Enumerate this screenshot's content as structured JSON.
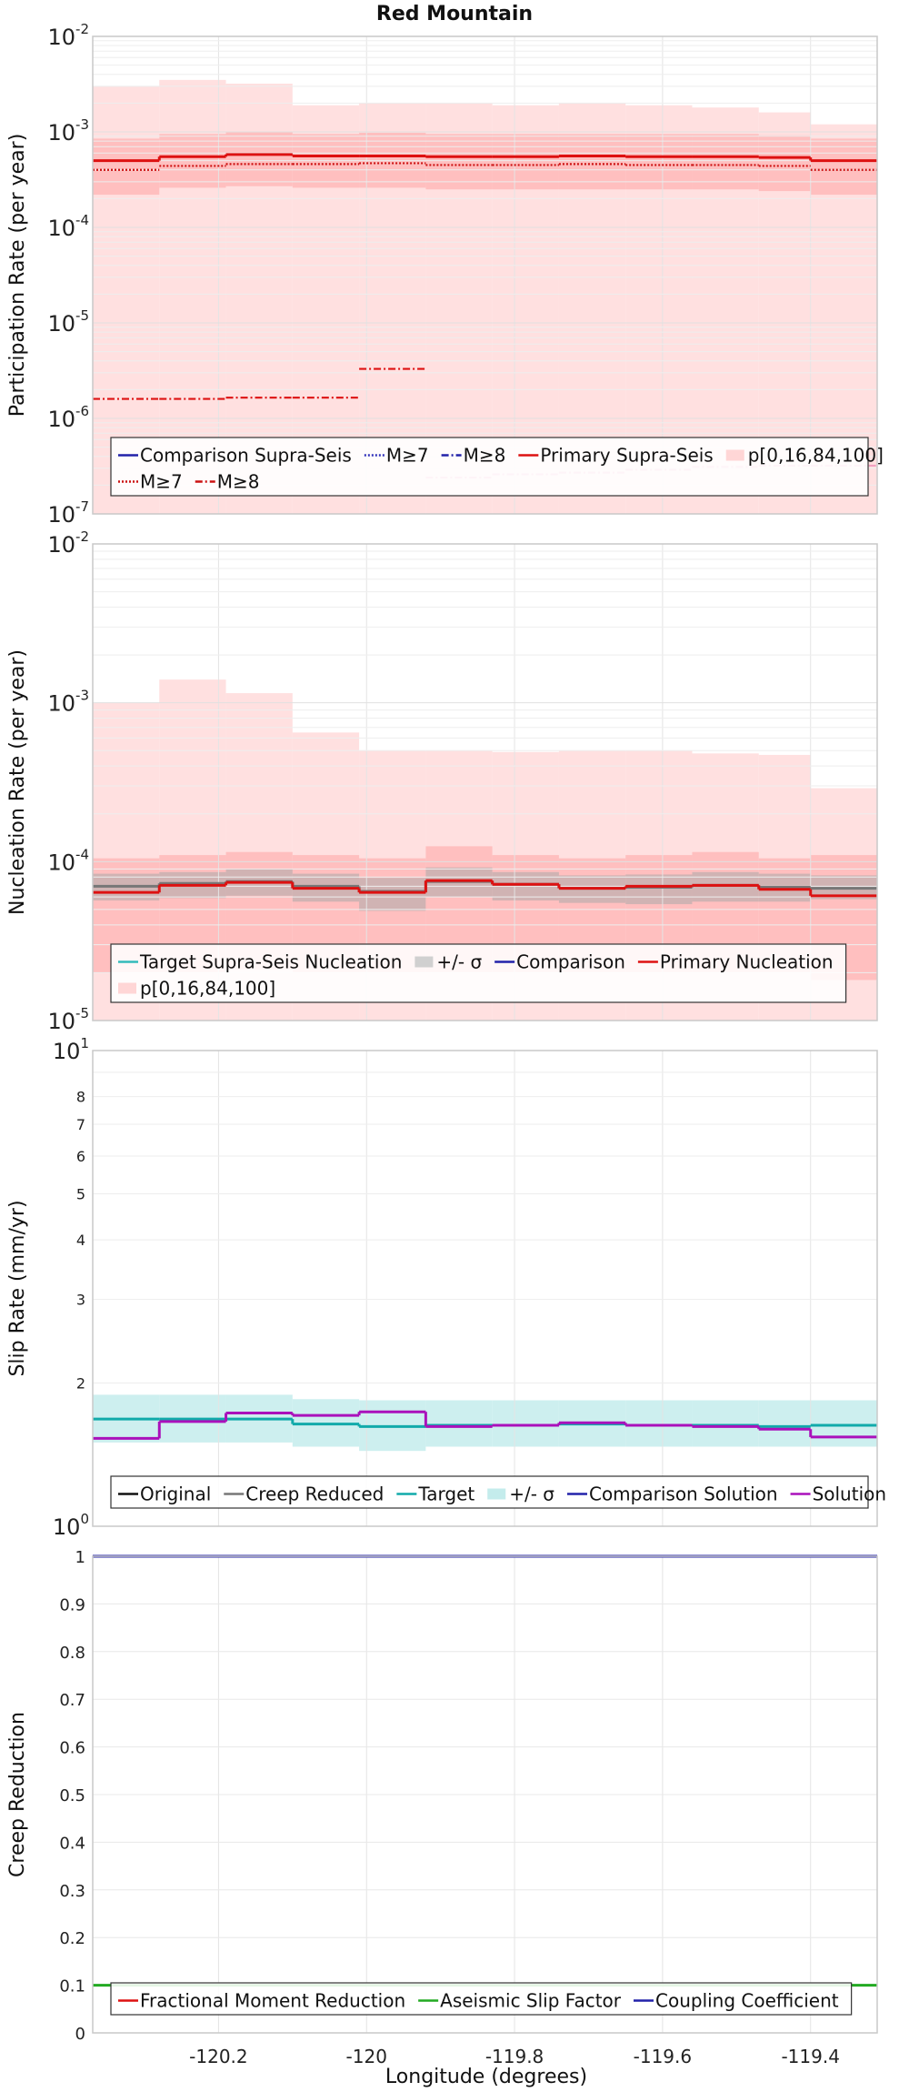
{
  "figure_title": "Red Mountain",
  "shared_xlabel": "Longitude (degrees)",
  "chart_data": [
    {
      "type": "line",
      "id": "participation",
      "ylabel": "Participation Rate (per year)",
      "yscale": "log",
      "xlim": [
        -120.37,
        -119.31
      ],
      "ylim": [
        1e-07,
        0.01
      ],
      "x_ticks": [
        -120.2,
        -120,
        -119.8,
        -119.6,
        -119.4
      ],
      "x_tick_labels": [
        "-120.2",
        "-120",
        "-119.8",
        "-119.6",
        "-119.4"
      ],
      "y_tick_labels": [
        {
          "v": 1e-07,
          "base": "10",
          "exp": "-7"
        },
        {
          "v": 1e-06,
          "base": "10",
          "exp": "-6"
        },
        {
          "v": 1e-05,
          "base": "10",
          "exp": "-5"
        },
        {
          "v": 0.0001,
          "base": "10",
          "exp": "-4"
        },
        {
          "v": 0.001,
          "base": "10",
          "exp": "-3"
        },
        {
          "v": 0.01,
          "base": "10",
          "exp": "-2"
        }
      ],
      "x_edges": [
        -120.37,
        -120.28,
        -120.19,
        -120.1,
        -120.01,
        -119.92,
        -119.83,
        -119.74,
        -119.65,
        -119.56,
        -119.47,
        -119.4,
        -119.31
      ],
      "bands": [
        {
          "name": "p[0,16,84,100] outer",
          "color": "#ffdada",
          "low": [
            1e-07,
            1e-07,
            1e-07,
            1e-07,
            1e-07,
            1e-07,
            1e-07,
            1e-07,
            1e-07,
            1e-07,
            1e-07,
            1e-07
          ],
          "high": [
            0.003,
            0.0035,
            0.0032,
            0.0019,
            0.002,
            0.002,
            0.0019,
            0.002,
            0.0019,
            0.0018,
            0.0016,
            0.0012
          ]
        },
        {
          "name": "p[0,16,84,100] inner",
          "color": "#ffb8b8",
          "low": [
            0.00022,
            0.00026,
            0.00027,
            0.00026,
            0.00026,
            0.00025,
            0.00025,
            0.00025,
            0.00025,
            0.00025,
            0.00024,
            0.00022
          ],
          "high": [
            0.00085,
            0.00095,
            0.001,
            0.00095,
            0.00098,
            0.00095,
            0.00095,
            0.00095,
            0.00095,
            0.00095,
            0.00092,
            0.00085
          ]
        }
      ],
      "series": [
        {
          "name": "Primary Supra-Seis",
          "style": "solid",
          "color": "#dd1111",
          "values": [
            0.0005,
            0.00055,
            0.00058,
            0.00056,
            0.00056,
            0.00055,
            0.00055,
            0.00056,
            0.00055,
            0.00055,
            0.00054,
            0.0005
          ]
        },
        {
          "name": "M≥7",
          "style": "dotted",
          "color": "#cc1111",
          "values": [
            0.0004,
            0.00044,
            0.00046,
            0.00046,
            0.00047,
            0.00045,
            0.00045,
            0.00046,
            0.00045,
            0.00045,
            0.00044,
            0.0004
          ]
        },
        {
          "name": "M≥8",
          "style": "dashdot",
          "color": "#dd1111",
          "values": [
            1.6e-06,
            1.6e-06,
            1.65e-06,
            1.65e-06,
            3.3e-06,
            null,
            null,
            null,
            null,
            null,
            null,
            null
          ]
        },
        {
          "name": "M≥8 (Comparison)",
          "style": "dashdot",
          "color": "#f0a0c0",
          "values": [
            null,
            null,
            null,
            null,
            null,
            2.4e-07,
            2.6e-07,
            2.7e-07,
            2.9e-07,
            3.1e-07,
            3.2e-07,
            3.2e-07
          ]
        }
      ],
      "legend": {
        "rows": [
          [
            {
              "label": "Comparison Supra-Seis",
              "kind": "line",
              "color": "#2222aa",
              "style": "solid"
            },
            {
              "label": "M≥7",
              "kind": "line",
              "color": "#3333bb",
              "style": "dotted"
            },
            {
              "label": "M≥8",
              "kind": "line",
              "color": "#2222aa",
              "style": "dashdot"
            },
            {
              "label": "Primary Supra-Seis",
              "kind": "line",
              "color": "#dd1111",
              "style": "solid"
            },
            {
              "label": "p[0,16,84,100]",
              "kind": "patch",
              "color": "#ffd6d6"
            }
          ],
          [
            {
              "label": "M≥7",
              "kind": "line",
              "color": "#cc1111",
              "style": "dotted"
            },
            {
              "label": "M≥8",
              "kind": "line",
              "color": "#cc1111",
              "style": "dashdot"
            }
          ]
        ]
      }
    },
    {
      "type": "line",
      "id": "nucleation",
      "ylabel": "Nucleation Rate (per year)",
      "yscale": "log",
      "xlim": [
        -120.37,
        -119.31
      ],
      "ylim": [
        1e-05,
        0.01
      ],
      "x_ticks": [
        -120.2,
        -120,
        -119.8,
        -119.6,
        -119.4
      ],
      "y_tick_labels": [
        {
          "v": 1e-05,
          "base": "10",
          "exp": "-5"
        },
        {
          "v": 0.0001,
          "base": "10",
          "exp": "-4"
        },
        {
          "v": 0.001,
          "base": "10",
          "exp": "-3"
        },
        {
          "v": 0.01,
          "base": "10",
          "exp": "-2"
        }
      ],
      "x_edges": [
        -120.37,
        -120.28,
        -120.19,
        -120.1,
        -120.01,
        -119.92,
        -119.83,
        -119.74,
        -119.65,
        -119.56,
        -119.47,
        -119.4,
        -119.31
      ],
      "bands": [
        {
          "name": "p[0,16,84,100] outer",
          "color": "#ffdada",
          "low": [
            1e-05,
            1e-05,
            1e-05,
            1e-05,
            1e-05,
            1e-05,
            1e-05,
            1e-05,
            1e-05,
            1e-05,
            1e-05,
            1e-05
          ],
          "high": [
            0.001,
            0.0014,
            0.00115,
            0.00065,
            0.0005,
            0.0005,
            0.00049,
            0.0005,
            0.0005,
            0.00048,
            0.00047,
            0.00029
          ]
        },
        {
          "name": "p[0,16,84,100] inner",
          "color": "#ffb8b8",
          "low": [
            2e-05,
            2e-05,
            2.1e-05,
            2e-05,
            2e-05,
            2e-05,
            2e-05,
            2e-05,
            2e-05,
            2e-05,
            2e-05,
            1.8e-05
          ],
          "high": [
            0.000105,
            0.00011,
            0.000115,
            0.00011,
            0.000105,
            0.000125,
            0.00011,
            0.000105,
            0.00011,
            0.000115,
            0.000105,
            0.00011
          ]
        },
        {
          "name": "+/- σ",
          "color": "#c8b0b0",
          "low": [
            5.7e-05,
            5.9e-05,
            6.1e-05,
            5.6e-05,
            4.9e-05,
            6e-05,
            5.7e-05,
            5.5e-05,
            5.4e-05,
            5.6e-05,
            5.6e-05,
            5.8e-05
          ],
          "high": [
            8.4e-05,
            8.6e-05,
            9e-05,
            8.4e-05,
            7.9e-05,
            9.2e-05,
            8.6e-05,
            8.2e-05,
            8.3e-05,
            8.6e-05,
            8.4e-05,
            8.2e-05
          ]
        }
      ],
      "series": [
        {
          "name": "Target Supra-Seis Nucleation",
          "style": "solid",
          "color": "#777777",
          "values": [
            7e-05,
            7.3e-05,
            7.5e-05,
            7e-05,
            6.5e-05,
            7.5e-05,
            7.2e-05,
            6.8e-05,
            6.9e-05,
            7.1e-05,
            6.9e-05,
            6.8e-05
          ]
        },
        {
          "name": "Primary Nucleation",
          "style": "solid",
          "color": "#dd1111",
          "values": [
            6.4e-05,
            7.1e-05,
            7.4e-05,
            6.8e-05,
            6.4e-05,
            7.6e-05,
            7.2e-05,
            6.8e-05,
            7e-05,
            7.1e-05,
            6.7e-05,
            6.1e-05
          ]
        }
      ],
      "legend": {
        "rows": [
          [
            {
              "label": "Target Supra-Seis Nucleation",
              "kind": "line",
              "color": "#33bbbb",
              "style": "solid"
            },
            {
              "label": "+/- σ",
              "kind": "patch",
              "color": "#d0d0d0"
            },
            {
              "label": "Comparison",
              "kind": "line",
              "color": "#2222aa",
              "style": "solid"
            },
            {
              "label": "Primary Nucleation",
              "kind": "line",
              "color": "#dd1111",
              "style": "solid"
            }
          ],
          [
            {
              "label": "p[0,16,84,100]",
              "kind": "patch",
              "color": "#ffd6d6"
            }
          ]
        ]
      }
    },
    {
      "type": "line",
      "id": "slip",
      "ylabel": "Slip Rate (mm/yr)",
      "yscale": "log",
      "xlim": [
        -120.37,
        -119.31
      ],
      "ylim": [
        1,
        10
      ],
      "x_ticks": [
        -120.2,
        -120,
        -119.8,
        -119.6,
        -119.4
      ],
      "y_tick_labels": [
        {
          "v": 1,
          "base": "10",
          "exp": "0"
        },
        {
          "v": 10,
          "base": "10",
          "exp": "1"
        }
      ],
      "y_minor_labels": [
        {
          "v": 2,
          "t": "2"
        },
        {
          "v": 3,
          "t": "3"
        },
        {
          "v": 4,
          "t": "4"
        },
        {
          "v": 5,
          "t": "5"
        },
        {
          "v": 6,
          "t": "6"
        },
        {
          "v": 7,
          "t": "7"
        },
        {
          "v": 8,
          "t": "8"
        }
      ],
      "x_edges": [
        -120.37,
        -120.28,
        -120.19,
        -120.1,
        -120.01,
        -119.92,
        -119.83,
        -119.74,
        -119.65,
        -119.56,
        -119.47,
        -119.4,
        -119.31
      ],
      "bands": [
        {
          "name": "+/- σ",
          "color": "#c4ecec",
          "low": [
            1.5,
            1.5,
            1.5,
            1.47,
            1.44,
            1.47,
            1.47,
            1.47,
            1.47,
            1.47,
            1.47,
            1.47
          ],
          "high": [
            1.89,
            1.89,
            1.89,
            1.85,
            1.84,
            1.84,
            1.84,
            1.84,
            1.84,
            1.84,
            1.84,
            1.84
          ]
        }
      ],
      "series": [
        {
          "name": "Target",
          "style": "solid",
          "color": "#11aaaa",
          "values": [
            1.68,
            1.68,
            1.68,
            1.64,
            1.62,
            1.63,
            1.63,
            1.64,
            1.63,
            1.63,
            1.62,
            1.63
          ]
        },
        {
          "name": "Solution",
          "style": "solid",
          "color": "#aa11bb",
          "values": [
            1.53,
            1.66,
            1.73,
            1.71,
            1.74,
            1.62,
            1.63,
            1.65,
            1.63,
            1.62,
            1.6,
            1.54
          ]
        }
      ],
      "legend": {
        "rows": [
          [
            {
              "label": "Original",
              "kind": "line",
              "color": "#111111",
              "style": "solid"
            },
            {
              "label": "Creep Reduced",
              "kind": "line",
              "color": "#777777",
              "style": "solid"
            },
            {
              "label": "Target",
              "kind": "line",
              "color": "#11aaaa",
              "style": "solid"
            },
            {
              "label": "+/- σ",
              "kind": "patch",
              "color": "#c4ecec"
            },
            {
              "label": "Comparison Solution",
              "kind": "line",
              "color": "#2222aa",
              "style": "solid"
            },
            {
              "label": "Solution",
              "kind": "line",
              "color": "#aa11bb",
              "style": "solid"
            }
          ]
        ]
      }
    },
    {
      "type": "line",
      "id": "creep",
      "ylabel": "Creep Reduction",
      "yscale": "linear",
      "xlim": [
        -120.37,
        -119.31
      ],
      "ylim": [
        0,
        1
      ],
      "x_ticks": [
        -120.2,
        -120,
        -119.8,
        -119.6,
        -119.4
      ],
      "x_tick_labels": [
        "-120.2",
        "-120",
        "-119.8",
        "-119.6",
        "-119.4"
      ],
      "y_tick_labels": [
        {
          "v": 0,
          "t": "0"
        },
        {
          "v": 0.1,
          "t": "0.1"
        },
        {
          "v": 0.2,
          "t": "0.2"
        },
        {
          "v": 0.3,
          "t": "0.3"
        },
        {
          "v": 0.4,
          "t": "0.4"
        },
        {
          "v": 0.5,
          "t": "0.5"
        },
        {
          "v": 0.6,
          "t": "0.6"
        },
        {
          "v": 0.7,
          "t": "0.7"
        },
        {
          "v": 0.8,
          "t": "0.8"
        },
        {
          "v": 0.9,
          "t": "0.9"
        },
        {
          "v": 1,
          "t": "1"
        }
      ],
      "x_edges": [
        -120.37,
        -119.31
      ],
      "bands": [],
      "series": [
        {
          "name": "Aseismic Slip Factor",
          "style": "solid",
          "color": "#22aa22",
          "values": [
            0.1
          ]
        },
        {
          "name": "Coupling Coefficient",
          "style": "solid",
          "color": "#2222aa",
          "values": [
            1.0
          ]
        }
      ],
      "legend": {
        "rows": [
          [
            {
              "label": "Fractional Moment Reduction",
              "kind": "line",
              "color": "#dd1111",
              "style": "solid"
            },
            {
              "label": "Aseismic Slip Factor",
              "kind": "line",
              "color": "#22aa22",
              "style": "solid"
            },
            {
              "label": "Coupling Coefficient",
              "kind": "line",
              "color": "#2222aa",
              "style": "solid"
            }
          ]
        ]
      }
    }
  ]
}
